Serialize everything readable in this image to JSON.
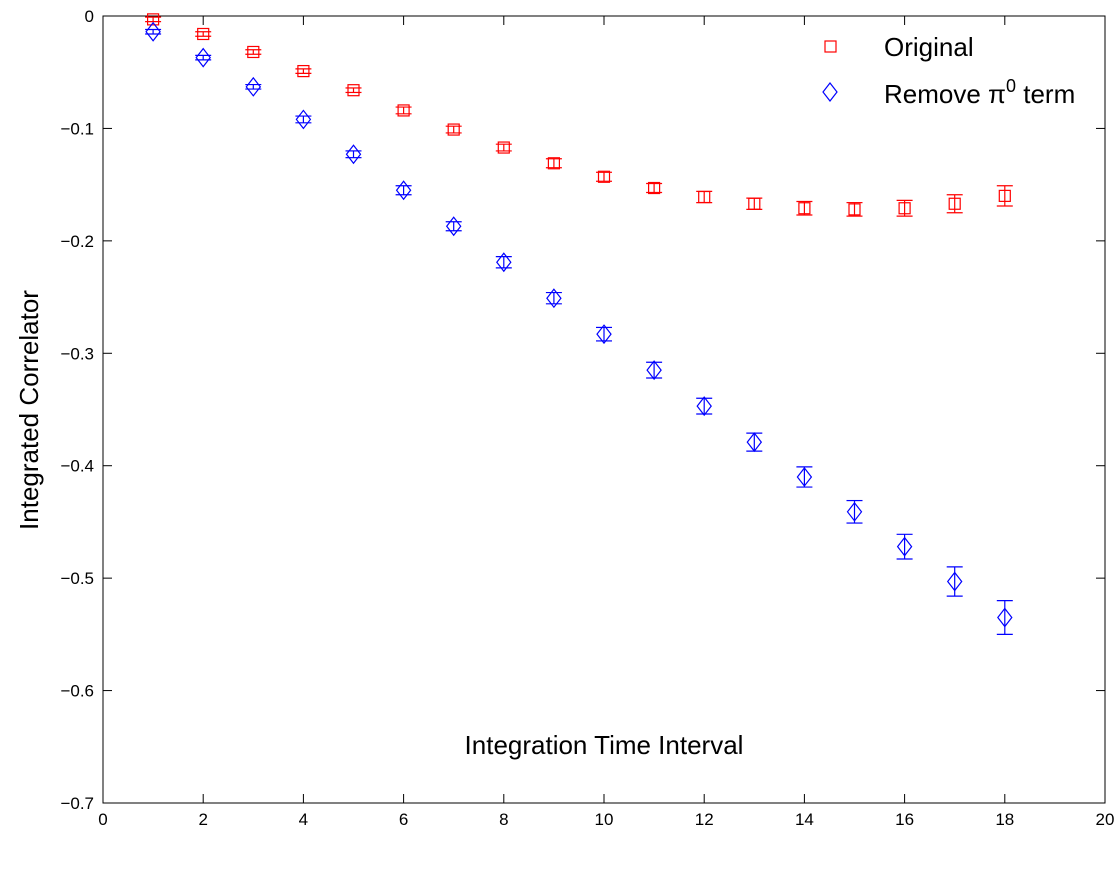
{
  "chart_data": {
    "type": "scatter",
    "xlabel": "Integration Time Interval",
    "ylabel": "Integrated Correlator",
    "xlim": [
      0,
      20
    ],
    "ylim": [
      -0.7,
      0
    ],
    "xticks": [
      0,
      2,
      4,
      6,
      8,
      10,
      12,
      14,
      16,
      18,
      20
    ],
    "yticks": [
      0,
      -0.1,
      -0.2,
      -0.3,
      -0.4,
      -0.5,
      -0.6,
      -0.7
    ],
    "xtick_labels": [
      "0",
      "2",
      "4",
      "6",
      "8",
      "10",
      "12",
      "14",
      "16",
      "18",
      "20"
    ],
    "ytick_labels": [
      "0",
      "−0.1",
      "−0.2",
      "−0.3",
      "−0.4",
      "−0.5",
      "−0.6",
      "−0.7"
    ],
    "grid": false,
    "legend_position": "top-right",
    "series": [
      {
        "name": "Original",
        "marker": "square",
        "color": "#ff0000",
        "x": [
          1,
          2,
          3,
          4,
          5,
          6,
          7,
          8,
          9,
          10,
          11,
          12,
          13,
          14,
          15,
          16,
          17,
          18
        ],
        "y": [
          -0.003,
          -0.016,
          -0.032,
          -0.049,
          -0.066,
          -0.084,
          -0.101,
          -0.117,
          -0.131,
          -0.143,
          -0.153,
          -0.161,
          -0.167,
          -0.171,
          -0.172,
          -0.171,
          -0.167,
          -0.16
        ],
        "err": [
          0.002,
          0.002,
          0.002,
          0.002,
          0.002,
          0.003,
          0.003,
          0.003,
          0.004,
          0.004,
          0.004,
          0.005,
          0.005,
          0.006,
          0.006,
          0.007,
          0.008,
          0.009
        ]
      },
      {
        "name": "Remove π⁰ term",
        "marker": "diamond",
        "color": "#0000ff",
        "x": [
          1,
          2,
          3,
          4,
          5,
          6,
          7,
          8,
          9,
          10,
          11,
          12,
          13,
          14,
          15,
          16,
          17,
          18
        ],
        "y": [
          -0.014,
          -0.037,
          -0.063,
          -0.092,
          -0.123,
          -0.155,
          -0.187,
          -0.219,
          -0.251,
          -0.283,
          -0.315,
          -0.347,
          -0.379,
          -0.41,
          -0.441,
          -0.472,
          -0.503,
          -0.535
        ],
        "err": [
          0.002,
          0.002,
          0.002,
          0.003,
          0.003,
          0.004,
          0.004,
          0.005,
          0.005,
          0.006,
          0.007,
          0.007,
          0.008,
          0.009,
          0.01,
          0.011,
          0.013,
          0.015
        ]
      }
    ],
    "legend": {
      "entries": [
        "Original",
        "Remove π",
        "0",
        " term"
      ]
    }
  }
}
